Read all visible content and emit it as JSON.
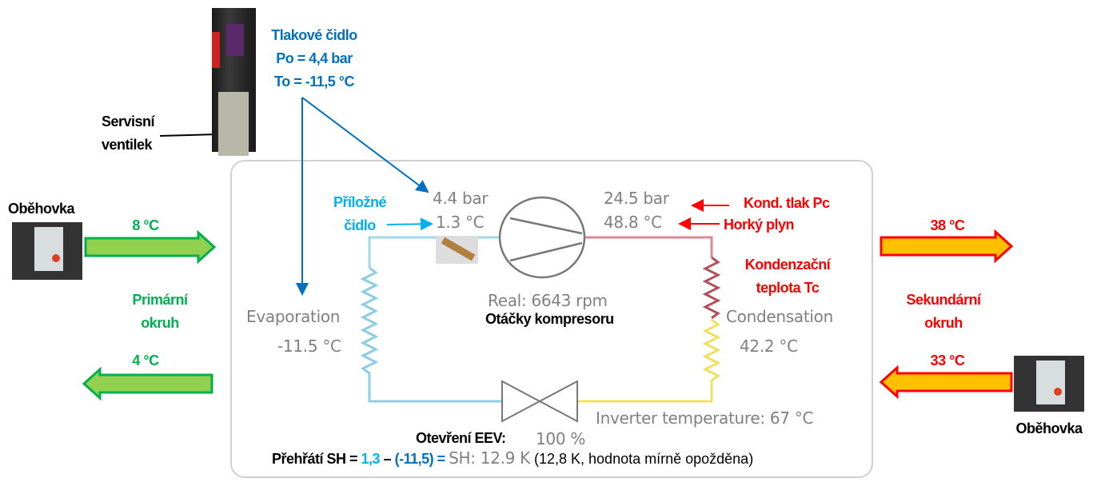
{
  "pressure_sensor": {
    "title": "Tlakové čidlo",
    "po": "Po = 4,4 bar",
    "to": "To = -11,5 °C"
  },
  "service_valve": {
    "line1": "Servisní",
    "line2": "ventilek"
  },
  "primary": {
    "pump_label": "Oběhovka",
    "supply_temp": "8 °C",
    "return_temp": "4 °C",
    "line1": "Primární",
    "line2": "okruh",
    "color": "#00b050"
  },
  "secondary": {
    "pump_label": "Oběhovka",
    "supply_temp": "38 °C",
    "return_temp": "33 °C",
    "line1": "Sekundární",
    "line2": "okruh",
    "color": "#ff0000"
  },
  "contact_sensor": {
    "line1": "Příložné",
    "line2": "čidlo"
  },
  "panel": {
    "suction_pressure": "4.4 bar",
    "suction_temp": "1.3 °C",
    "discharge_pressure": "24.5 bar",
    "discharge_temp": "48.8 °C",
    "compressor_speed": "Real: 6643 rpm",
    "evaporation_label": "Evaporation",
    "evaporation_temp": "-11.5 °C",
    "condensation_label": "Condensation",
    "condensation_temp": "42.2 °C",
    "inverter_temp": "Inverter temperature: 67 °C",
    "eev_opening": "100 %",
    "superheat": "SH: 12.9 K"
  },
  "annotations": {
    "cond_pressure": "Kond. tlak Pc",
    "hot_gas": "Horký plyn",
    "cond_temp_line1": "Kondenzační",
    "cond_temp_line2": "teplota Tc",
    "compressor_speed": "Otáčky kompresoru",
    "eev_opening": "Otevření EEV:",
    "sh_prefix": "Přehřátí SH = ",
    "sh_a": "1,3",
    "sh_minus": " – ",
    "sh_b": "(-11,5)",
    "sh_eq": " = ",
    "sh_note": "(12,8 K, hodnota mírně opožděna)"
  }
}
